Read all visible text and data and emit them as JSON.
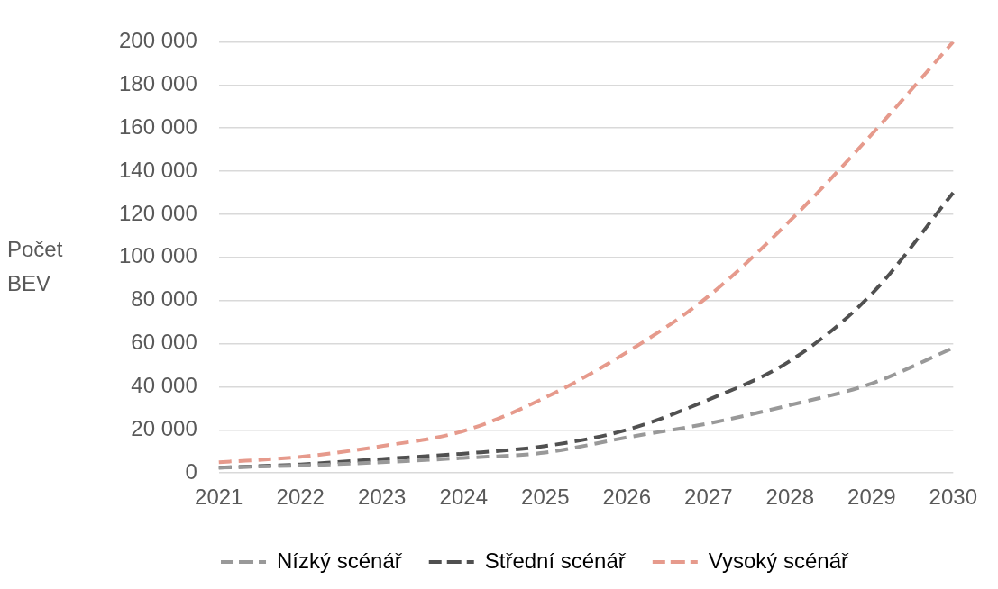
{
  "chart_data": {
    "type": "line",
    "ylabel": "Počet BEV",
    "categories": [
      "2021",
      "2022",
      "2023",
      "2024",
      "2025",
      "2026",
      "2027",
      "2028",
      "2029",
      "2030"
    ],
    "series": [
      {
        "name": "Nízký scénář",
        "color": "#999999",
        "values": [
          2500,
          3500,
          5000,
          7000,
          9500,
          16500,
          23000,
          31500,
          41500,
          58000
        ]
      },
      {
        "name": "Střední scénář",
        "color": "#505050",
        "values": [
          2500,
          4000,
          6500,
          9000,
          12500,
          20000,
          34000,
          52000,
          83000,
          130000
        ]
      },
      {
        "name": "Vysoký scénář",
        "color": "#e69a8c",
        "values": [
          5000,
          7500,
          12500,
          19500,
          35000,
          56000,
          82000,
          117000,
          157000,
          200000
        ]
      }
    ],
    "ylim": [
      0,
      200000
    ],
    "yticks": [
      {
        "value": 0,
        "label": "0"
      },
      {
        "value": 20000,
        "label": "20 000"
      },
      {
        "value": 40000,
        "label": "40 000"
      },
      {
        "value": 60000,
        "label": "60 000"
      },
      {
        "value": 80000,
        "label": "80 000"
      },
      {
        "value": 100000,
        "label": "100 000"
      },
      {
        "value": 120000,
        "label": "120 000"
      },
      {
        "value": 140000,
        "label": "140 000"
      },
      {
        "value": 160000,
        "label": "160 000"
      },
      {
        "value": 180000,
        "label": "180 000"
      },
      {
        "value": 200000,
        "label": "200 000"
      }
    ],
    "grid": "y",
    "legend": "bottom",
    "line_style": "dashed",
    "marker": "none"
  }
}
